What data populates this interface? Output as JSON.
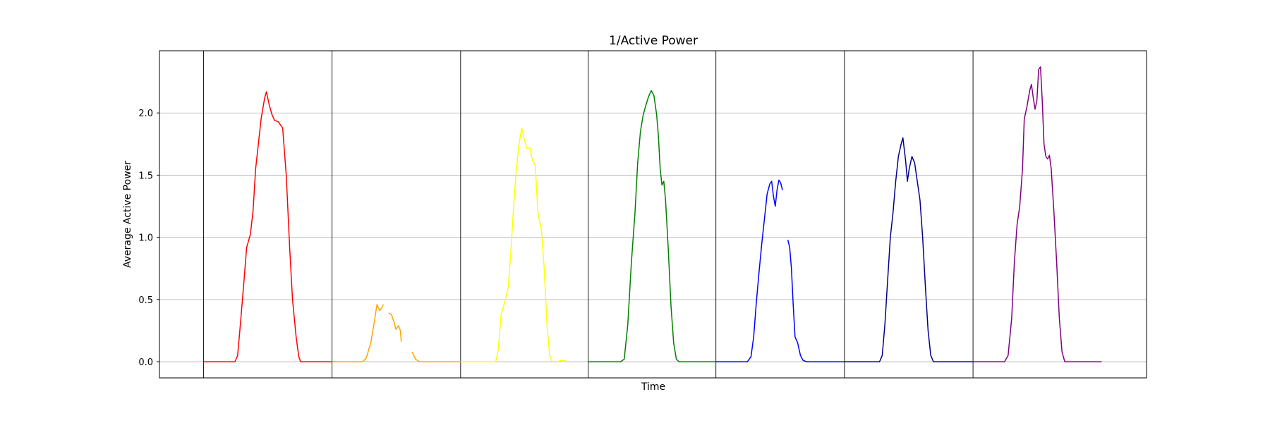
{
  "chart_data": {
    "type": "line",
    "title": "1/Active Power",
    "xlabel": "Time",
    "ylabel": "Average Active Power",
    "xlim": [
      0,
      1098
    ],
    "ylim": [
      -0.13,
      2.5
    ],
    "yticks": [
      0.0,
      0.5,
      1.0,
      1.5,
      2.0
    ],
    "ytick_labels": [
      "0.0",
      "0.5",
      "1.0",
      "1.5",
      "2.0"
    ],
    "grid": "horizontal",
    "legend": "none",
    "day_separators": [
      49,
      192,
      335,
      477,
      619,
      762,
      905
    ],
    "series": [
      {
        "color": "#ff0000",
        "segments": [
          [
            [
              49,
              0
            ],
            [
              84,
              0
            ],
            [
              87,
              0.05
            ],
            [
              90,
              0.3
            ],
            [
              94,
              0.65
            ],
            [
              97,
              0.92
            ],
            [
              101,
              1.02
            ],
            [
              104,
              1.2
            ],
            [
              107,
              1.55
            ],
            [
              110,
              1.75
            ],
            [
              113,
              1.95
            ],
            [
              117,
              2.12
            ],
            [
              119,
              2.17
            ],
            [
              122,
              2.07
            ],
            [
              125,
              1.99
            ],
            [
              128,
              1.94
            ],
            [
              132,
              1.93
            ],
            [
              137,
              1.88
            ],
            [
              141,
              1.5
            ],
            [
              145,
              0.9
            ],
            [
              148,
              0.5
            ],
            [
              152,
              0.2
            ],
            [
              155,
              0.04
            ],
            [
              157,
              0
            ],
            [
              192,
              0
            ]
          ]
        ]
      },
      {
        "color": "#ffa500",
        "segments": [
          [
            [
              192,
              0
            ],
            [
              226,
              0
            ],
            [
              230,
              0.03
            ],
            [
              235,
              0.15
            ],
            [
              239,
              0.32
            ],
            [
              242,
              0.46
            ],
            [
              245,
              0.41
            ],
            [
              247,
              0.43
            ],
            [
              249,
              0.46
            ]
          ],
          [
            [
              255,
              0.39
            ],
            [
              258,
              0.38
            ],
            [
              261,
              0.32
            ],
            [
              263,
              0.26
            ],
            [
              266,
              0.29
            ],
            [
              268,
              0.25
            ],
            [
              269,
              0.16
            ]
          ],
          [
            [
              281,
              0.08
            ],
            [
              285,
              0.02
            ],
            [
              289,
              0
            ],
            [
              335,
              0
            ]
          ]
        ]
      },
      {
        "color": "#ffff00",
        "segments": [
          [
            [
              335,
              0
            ],
            [
              374,
              0
            ],
            [
              377,
              0.1
            ],
            [
              380,
              0.38
            ],
            [
              384,
              0.48
            ],
            [
              388,
              0.6
            ],
            [
              391,
              0.9
            ],
            [
              394,
              1.25
            ],
            [
              397,
              1.55
            ],
            [
              400,
              1.75
            ],
            [
              403,
              1.88
            ],
            [
              406,
              1.78
            ],
            [
              409,
              1.71
            ],
            [
              412,
              1.72
            ],
            [
              415,
              1.62
            ],
            [
              418,
              1.58
            ],
            [
              421,
              1.2
            ],
            [
              425,
              1.05
            ],
            [
              428,
              0.75
            ],
            [
              431,
              0.3
            ],
            [
              434,
              0.05
            ],
            [
              437,
              0
            ]
          ],
          [
            [
              442,
              0
            ],
            [
              447,
              0.01
            ],
            [
              452,
              0.01
            ]
          ]
        ]
      },
      {
        "color": "#008000",
        "segments": [
          [
            [
              477,
              0
            ],
            [
              513,
              0
            ],
            [
              517,
              0.02
            ],
            [
              521,
              0.3
            ],
            [
              525,
              0.8
            ],
            [
              529,
              1.2
            ],
            [
              532,
              1.6
            ],
            [
              535,
              1.85
            ],
            [
              538,
              1.98
            ],
            [
              541,
              2.06
            ],
            [
              544,
              2.13
            ],
            [
              547,
              2.18
            ],
            [
              550,
              2.14
            ],
            [
              553,
              1.99
            ],
            [
              555,
              1.82
            ],
            [
              557,
              1.55
            ],
            [
              559,
              1.42
            ],
            [
              561,
              1.45
            ],
            [
              563,
              1.3
            ],
            [
              566,
              0.9
            ],
            [
              569,
              0.45
            ],
            [
              572,
              0.15
            ],
            [
              575,
              0.02
            ],
            [
              578,
              0
            ],
            [
              619,
              0
            ]
          ]
        ]
      },
      {
        "color": "#0000ff",
        "segments": [
          [
            [
              619,
              0
            ],
            [
              654,
              0
            ],
            [
              658,
              0.04
            ],
            [
              661,
              0.2
            ],
            [
              664,
              0.48
            ],
            [
              667,
              0.72
            ],
            [
              670,
              0.95
            ],
            [
              673,
              1.15
            ],
            [
              676,
              1.35
            ],
            [
              679,
              1.43
            ],
            [
              681,
              1.45
            ],
            [
              683,
              1.33
            ],
            [
              685,
              1.25
            ],
            [
              687,
              1.38
            ],
            [
              689,
              1.46
            ],
            [
              691,
              1.44
            ],
            [
              693,
              1.38
            ]
          ],
          [
            [
              699,
              0.98
            ],
            [
              701,
              0.92
            ],
            [
              703,
              0.75
            ],
            [
              705,
              0.45
            ],
            [
              707,
              0.2
            ],
            [
              710,
              0.15
            ],
            [
              713,
              0.05
            ],
            [
              716,
              0.01
            ],
            [
              720,
              0
            ],
            [
              762,
              0
            ]
          ]
        ]
      },
      {
        "color": "#00008b",
        "segments": [
          [
            [
              762,
              0
            ],
            [
              801,
              0
            ],
            [
              804,
              0.05
            ],
            [
              807,
              0.3
            ],
            [
              810,
              0.65
            ],
            [
              813,
              1.0
            ],
            [
              816,
              1.2
            ],
            [
              819,
              1.45
            ],
            [
              822,
              1.65
            ],
            [
              825,
              1.75
            ],
            [
              827,
              1.8
            ],
            [
              830,
              1.62
            ],
            [
              832,
              1.45
            ],
            [
              834,
              1.55
            ],
            [
              837,
              1.65
            ],
            [
              840,
              1.6
            ],
            [
              843,
              1.45
            ],
            [
              846,
              1.3
            ],
            [
              849,
              1.0
            ],
            [
              852,
              0.6
            ],
            [
              855,
              0.25
            ],
            [
              858,
              0.05
            ],
            [
              861,
              0
            ],
            [
              905,
              0
            ]
          ]
        ]
      },
      {
        "color": "#800080",
        "segments": [
          [
            [
              905,
              0
            ],
            [
              940,
              0
            ],
            [
              944,
              0.05
            ],
            [
              948,
              0.35
            ],
            [
              951,
              0.8
            ],
            [
              954,
              1.1
            ],
            [
              957,
              1.25
            ],
            [
              960,
              1.55
            ],
            [
              962,
              1.95
            ],
            [
              965,
              2.05
            ],
            [
              968,
              2.18
            ],
            [
              970,
              2.23
            ],
            [
              972,
              2.12
            ],
            [
              974,
              2.03
            ],
            [
              976,
              2.1
            ],
            [
              978,
              2.35
            ],
            [
              980,
              2.37
            ],
            [
              982,
              2.1
            ],
            [
              984,
              1.75
            ],
            [
              986,
              1.65
            ],
            [
              988,
              1.63
            ],
            [
              990,
              1.66
            ],
            [
              992,
              1.55
            ],
            [
              995,
              1.2
            ],
            [
              998,
              0.8
            ],
            [
              1001,
              0.35
            ],
            [
              1004,
              0.08
            ],
            [
              1007,
              0
            ],
            [
              1048,
              0
            ]
          ]
        ]
      }
    ]
  }
}
